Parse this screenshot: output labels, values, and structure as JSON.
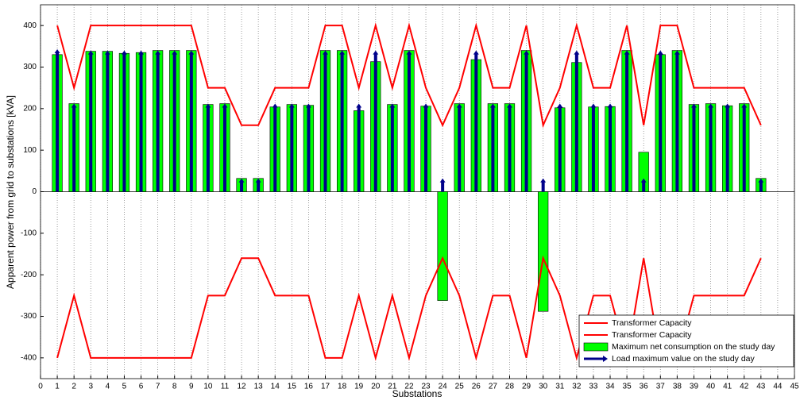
{
  "chart_data": {
    "type": "combo",
    "x_label": "Substations",
    "y_label": "Apparent power from grid to substations [kVA]",
    "x": [
      1,
      2,
      3,
      4,
      5,
      6,
      7,
      8,
      9,
      10,
      11,
      12,
      13,
      14,
      15,
      16,
      17,
      18,
      19,
      20,
      21,
      22,
      23,
      24,
      25,
      26,
      27,
      28,
      29,
      30,
      31,
      32,
      33,
      34,
      35,
      36,
      37,
      38,
      39,
      40,
      41,
      42,
      43
    ],
    "series": [
      {
        "name": "Transformer Capacity",
        "type": "line",
        "color": "#ff0000",
        "values": [
          400,
          250,
          400,
          400,
          400,
          400,
          400,
          400,
          400,
          250,
          250,
          160,
          160,
          250,
          250,
          250,
          400,
          400,
          250,
          400,
          250,
          400,
          250,
          160,
          250,
          400,
          250,
          250,
          400,
          160,
          250,
          400,
          250,
          250,
          400,
          160,
          400,
          400,
          250,
          250,
          250,
          250,
          160
        ]
      },
      {
        "name": "Transformer Capacity",
        "type": "line",
        "color": "#ff0000",
        "values": [
          -400,
          -250,
          -400,
          -400,
          -400,
          -400,
          -400,
          -400,
          -400,
          -250,
          -250,
          -160,
          -160,
          -250,
          -250,
          -250,
          -400,
          -400,
          -250,
          -400,
          -250,
          -400,
          -250,
          -160,
          -250,
          -400,
          -250,
          -250,
          -400,
          -160,
          -250,
          -400,
          -250,
          -250,
          -400,
          -160,
          -400,
          -400,
          -250,
          -250,
          -250,
          -250,
          -160
        ]
      },
      {
        "name": "Maximum net consumption on the study day",
        "type": "bar",
        "color": "#00ff00",
        "values": [
          330,
          212,
          338,
          338,
          333,
          335,
          340,
          340,
          340,
          210,
          212,
          32,
          32,
          204,
          210,
          208,
          340,
          340,
          195,
          313,
          210,
          340,
          206,
          -262,
          212,
          318,
          212,
          212,
          340,
          -288,
          202,
          311,
          204,
          205,
          340,
          95,
          330,
          340,
          210,
          212,
          207,
          212,
          32
        ]
      },
      {
        "name": "Load maximum value on the study day",
        "type": "arrow",
        "color": "#00008b",
        "values": [
          343,
          212,
          340,
          340,
          340,
          340,
          340,
          340,
          340,
          212,
          212,
          32,
          32,
          212,
          212,
          212,
          340,
          340,
          212,
          340,
          212,
          340,
          212,
          32,
          212,
          340,
          212,
          212,
          340,
          32,
          212,
          340,
          212,
          212,
          340,
          32,
          340,
          340,
          212,
          212,
          212,
          212,
          32
        ]
      }
    ],
    "xlim": [
      0,
      45
    ],
    "xticks": [
      0,
      1,
      2,
      3,
      4,
      5,
      6,
      7,
      8,
      9,
      10,
      11,
      12,
      13,
      14,
      15,
      16,
      17,
      18,
      19,
      20,
      21,
      22,
      23,
      24,
      25,
      26,
      27,
      28,
      29,
      30,
      31,
      32,
      33,
      34,
      35,
      36,
      37,
      38,
      39,
      40,
      41,
      42,
      43,
      44,
      45
    ],
    "ylim": [
      -450,
      450
    ],
    "yticks": [
      -400,
      -300,
      -200,
      -100,
      0,
      100,
      200,
      300,
      400
    ],
    "grid": "x",
    "legend": "lower right"
  }
}
